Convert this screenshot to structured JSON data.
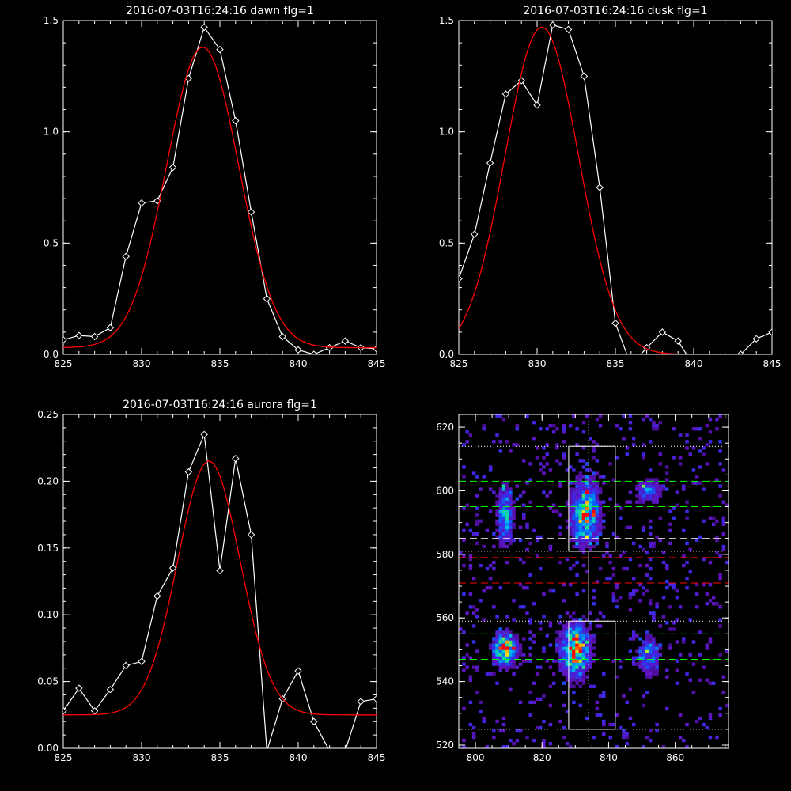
{
  "chart_data": [
    {
      "type": "line",
      "title": "2016-07-03T16:24:16 dawn flg=1",
      "xlim": [
        825,
        845
      ],
      "ylim": [
        0,
        1.5
      ],
      "xticks": [
        825,
        830,
        835,
        840,
        845
      ],
      "yticks": [
        0.0,
        0.5,
        1.0,
        1.5
      ],
      "xtick_labels": [
        "825",
        "830",
        "835",
        "840",
        "845"
      ],
      "ytick_labels": [
        "0.0",
        "0.5",
        "1.0",
        "1.5"
      ],
      "series": [
        {
          "color": "#ffffff",
          "marker": "diamond",
          "x": [
            825,
            826,
            827,
            828,
            829,
            830,
            831,
            832,
            833,
            834,
            835,
            836,
            837,
            838,
            839,
            840,
            841,
            842,
            843,
            844,
            845
          ],
          "y": [
            0.065,
            0.085,
            0.08,
            0.12,
            0.44,
            0.68,
            0.69,
            0.84,
            1.24,
            1.47,
            1.37,
            1.05,
            0.64,
            0.25,
            0.08,
            0.02,
            0.0,
            0.03,
            0.06,
            0.03,
            0.025
          ]
        },
        {
          "color": "#ff0000",
          "fit": "gaussian",
          "amp": 1.35,
          "center": 833.9,
          "sigma": 2.3,
          "baseline": 0.03
        }
      ]
    },
    {
      "type": "line",
      "title": "2016-07-03T16:24:16 dusk flg=1",
      "xlim": [
        825,
        845
      ],
      "ylim": [
        0,
        1.5
      ],
      "xticks": [
        825,
        830,
        835,
        840,
        845
      ],
      "yticks": [
        0.0,
        0.5,
        1.0,
        1.5
      ],
      "xtick_labels": [
        "825",
        "830",
        "835",
        "840",
        "845"
      ],
      "ytick_labels": [
        "0.0",
        "0.5",
        "1.0",
        "1.5"
      ],
      "series": [
        {
          "color": "#ffffff",
          "marker": "diamond",
          "x": [
            825,
            826,
            827,
            828,
            829,
            830,
            831,
            832,
            833,
            834,
            835,
            836,
            837,
            838,
            839,
            840,
            841,
            842,
            843,
            844,
            845
          ],
          "y": [
            0.34,
            0.54,
            0.86,
            1.17,
            1.23,
            1.12,
            1.48,
            1.46,
            1.25,
            0.75,
            0.14,
            -0.05,
            0.03,
            0.1,
            0.06,
            -0.05,
            -0.05,
            -0.03,
            0.0,
            0.07,
            0.1
          ]
        },
        {
          "color": "#ff0000",
          "fit": "gaussian",
          "amp": 1.47,
          "center": 830.3,
          "sigma": 2.35,
          "baseline": 0.0
        }
      ]
    },
    {
      "type": "line",
      "title": "2016-07-03T16:24:16 aurora flg=1",
      "xlim": [
        825,
        845
      ],
      "ylim": [
        0,
        0.25
      ],
      "xticks": [
        825,
        830,
        835,
        840,
        845
      ],
      "yticks": [
        0.0,
        0.05,
        0.1,
        0.15,
        0.2,
        0.25
      ],
      "xtick_labels": [
        "825",
        "830",
        "835",
        "840",
        "845"
      ],
      "ytick_labels": [
        "0.00",
        "0.05",
        "0.10",
        "0.15",
        "0.20",
        "0.25"
      ],
      "series": [
        {
          "color": "#ffffff",
          "marker": "diamond",
          "x": [
            825,
            826,
            827,
            828,
            829,
            830,
            831,
            832,
            833,
            834,
            835,
            836,
            837,
            838,
            839,
            840,
            841,
            842,
            843,
            844,
            845
          ],
          "y": [
            0.028,
            0.045,
            0.028,
            0.044,
            0.062,
            0.065,
            0.114,
            0.135,
            0.207,
            0.235,
            0.133,
            0.217,
            0.16,
            -0.002,
            0.037,
            0.058,
            0.02,
            -0.002,
            -0.002,
            0.035,
            0.037
          ]
        },
        {
          "color": "#ff0000",
          "fit": "gaussian",
          "amp": 0.19,
          "center": 834.3,
          "sigma": 2.0,
          "baseline": 0.025
        }
      ]
    },
    {
      "type": "heatmap",
      "title": "",
      "xlim": [
        795,
        876
      ],
      "ylim": [
        519,
        624
      ],
      "xticks": [
        800,
        820,
        840,
        860
      ],
      "yticks": [
        520,
        540,
        560,
        580,
        600,
        620
      ],
      "xtick_labels": [
        "800",
        "820",
        "840",
        "860"
      ],
      "ytick_labels": [
        "520",
        "540",
        "560",
        "580",
        "600",
        "620"
      ],
      "blobs": [
        {
          "x": 809,
          "y": 592,
          "sx": 1.6,
          "sy": 6.0,
          "amp": 0.55
        },
        {
          "x": 809,
          "y": 550,
          "sx": 2.2,
          "sy": 3.2,
          "amp": 0.95
        },
        {
          "x": 833,
          "y": 593,
          "sx": 2.8,
          "sy": 6.5,
          "amp": 0.8
        },
        {
          "x": 830,
          "y": 550,
          "sx": 2.8,
          "sy": 5.5,
          "amp": 0.95
        },
        {
          "x": 852,
          "y": 600,
          "sx": 2.5,
          "sy": 2.5,
          "amp": 0.45
        },
        {
          "x": 852,
          "y": 548,
          "sx": 2.2,
          "sy": 4.0,
          "amp": 0.45
        }
      ],
      "hot_pixels": [
        [
          833,
          599,
          1.0
        ],
        [
          830,
          550,
          0.95
        ],
        [
          809,
          550,
          1.0
        ],
        [
          833,
          585,
          0.85
        ],
        [
          808,
          601,
          0.7
        ]
      ],
      "boxes": [
        {
          "x0": 828,
          "x1": 842,
          "y0": 581,
          "y1": 614,
          "color": "#ffffff"
        },
        {
          "x0": 828,
          "x1": 842,
          "y0": 525,
          "y1": 559,
          "color": "#ffffff"
        }
      ],
      "connector_x": 834,
      "hlines": [
        {
          "y": 614,
          "color": "#ffffff",
          "style": "dotted"
        },
        {
          "y": 603,
          "color": "#00ff00",
          "style": "dashed"
        },
        {
          "y": 595,
          "color": "#00ff00",
          "style": "dashed"
        },
        {
          "y": 585,
          "color": "#ffffff",
          "style": "dashed"
        },
        {
          "y": 581,
          "color": "#ffffff",
          "style": "dotted"
        },
        {
          "y": 579,
          "color": "#ff0000",
          "style": "dashed"
        },
        {
          "y": 571,
          "color": "#ff0000",
          "style": "dashed"
        },
        {
          "y": 559,
          "color": "#ffffff",
          "style": "dotted"
        },
        {
          "y": 555,
          "color": "#00ff00",
          "style": "dashed"
        },
        {
          "y": 547,
          "color": "#00ff00",
          "style": "dashed"
        },
        {
          "y": 525,
          "color": "#ffffff",
          "style": "dotted"
        }
      ],
      "vlines": [
        {
          "x": 830.5,
          "color": "#ffffff",
          "style": "dotted"
        },
        {
          "x": 834,
          "color": "#ffffff",
          "style": "dotted"
        }
      ]
    }
  ]
}
